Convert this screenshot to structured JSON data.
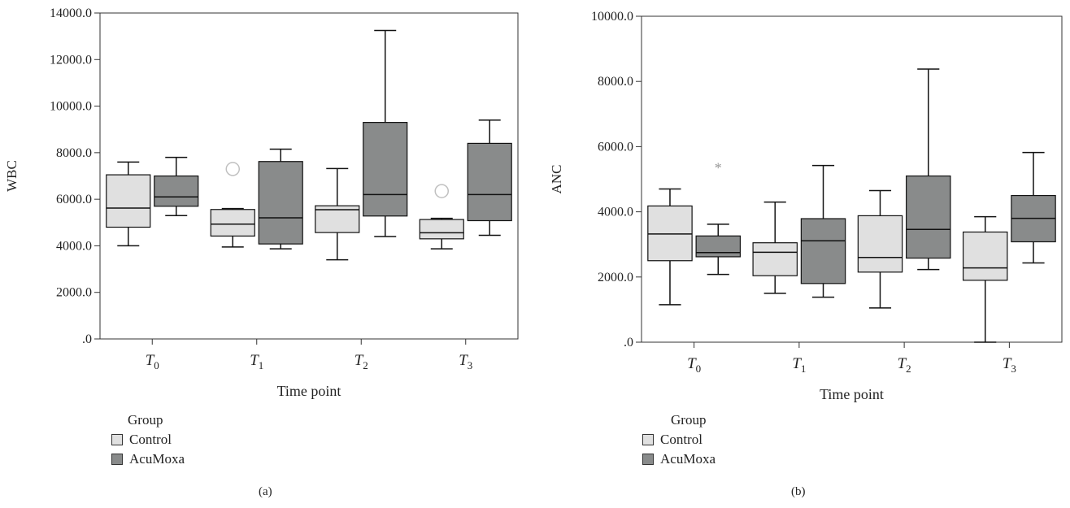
{
  "colors": {
    "control": "#e0e0e0",
    "acumoxa": "#898b8b",
    "axis": "#333333",
    "outlier": "#c0c0c0"
  },
  "chart_data": [
    {
      "type": "boxplot",
      "panel_label": "(a)",
      "ylabel": "WBC",
      "xlabel": "Time point",
      "ylim": [
        0,
        14000
      ],
      "yticks": [
        0,
        2000,
        4000,
        6000,
        8000,
        10000,
        12000,
        14000
      ],
      "ytick_labels": [
        ".0",
        "2000.0",
        "4000.0",
        "6000.0",
        "8000.0",
        "10000.0",
        "12000.0",
        "14000.0"
      ],
      "categories": [
        "T0",
        "T1",
        "T2",
        "T3"
      ],
      "category_labels": [
        {
          "base": "T",
          "sub": "0"
        },
        {
          "base": "T",
          "sub": "1"
        },
        {
          "base": "T",
          "sub": "2"
        },
        {
          "base": "T",
          "sub": "3"
        }
      ],
      "legend_title": "Group",
      "series": [
        {
          "name": "Control",
          "boxes": [
            {
              "min": 4000,
              "q1": 4800,
              "median": 5620,
              "q3": 7050,
              "max": 7600
            },
            {
              "min": 3950,
              "q1": 4420,
              "median": 4930,
              "q3": 5560,
              "max": 5600
            },
            {
              "min": 3400,
              "q1": 4570,
              "median": 5550,
              "q3": 5720,
              "max": 7320
            },
            {
              "min": 3870,
              "q1": 4300,
              "median": 4560,
              "q3": 5130,
              "max": 5180
            }
          ],
          "outliers": [
            {
              "category": 1,
              "value": 7300,
              "marker": "circle"
            },
            {
              "category": 3,
              "value": 6350,
              "marker": "circle"
            }
          ]
        },
        {
          "name": "AcuMoxa",
          "boxes": [
            {
              "min": 5300,
              "q1": 5700,
              "median": 6100,
              "q3": 7000,
              "max": 7800
            },
            {
              "min": 3870,
              "q1": 4080,
              "median": 5200,
              "q3": 7620,
              "max": 8150
            },
            {
              "min": 4400,
              "q1": 5280,
              "median": 6200,
              "q3": 9300,
              "max": 13250
            },
            {
              "min": 4450,
              "q1": 5080,
              "median": 6200,
              "q3": 8400,
              "max": 9400
            }
          ],
          "outliers": []
        }
      ]
    },
    {
      "type": "boxplot",
      "panel_label": "(b)",
      "ylabel": "ANC",
      "xlabel": "Time point",
      "ylim": [
        0,
        10000
      ],
      "yticks": [
        0,
        2000,
        4000,
        6000,
        8000,
        10000
      ],
      "ytick_labels": [
        ".0",
        "2000.0",
        "4000.0",
        "6000.0",
        "8000.0",
        "10000.0"
      ],
      "categories": [
        "T0",
        "T1",
        "T2",
        "T3"
      ],
      "category_labels": [
        {
          "base": "T",
          "sub": "0"
        },
        {
          "base": "T",
          "sub": "1"
        },
        {
          "base": "T",
          "sub": "2"
        },
        {
          "base": "T",
          "sub": "3"
        }
      ],
      "legend_title": "Group",
      "series": [
        {
          "name": "Control",
          "boxes": [
            {
              "min": 1150,
              "q1": 2500,
              "median": 3320,
              "q3": 4180,
              "max": 4700
            },
            {
              "min": 1500,
              "q1": 2040,
              "median": 2760,
              "q3": 3050,
              "max": 4300
            },
            {
              "min": 1050,
              "q1": 2150,
              "median": 2600,
              "q3": 3880,
              "max": 4650
            },
            {
              "min": 0,
              "q1": 1900,
              "median": 2280,
              "q3": 3380,
              "max": 3850
            }
          ],
          "outliers": []
        },
        {
          "name": "AcuMoxa",
          "boxes": [
            {
              "min": 2080,
              "q1": 2620,
              "median": 2750,
              "q3": 3260,
              "max": 3620
            },
            {
              "min": 1380,
              "q1": 1800,
              "median": 3110,
              "q3": 3790,
              "max": 5420
            },
            {
              "min": 2230,
              "q1": 2580,
              "median": 3460,
              "q3": 5100,
              "max": 8380
            },
            {
              "min": 2430,
              "q1": 3080,
              "median": 3800,
              "q3": 4500,
              "max": 5820
            }
          ],
          "outliers": [
            {
              "category": 0,
              "value": 5400,
              "marker": "asterisk"
            }
          ]
        }
      ]
    }
  ]
}
